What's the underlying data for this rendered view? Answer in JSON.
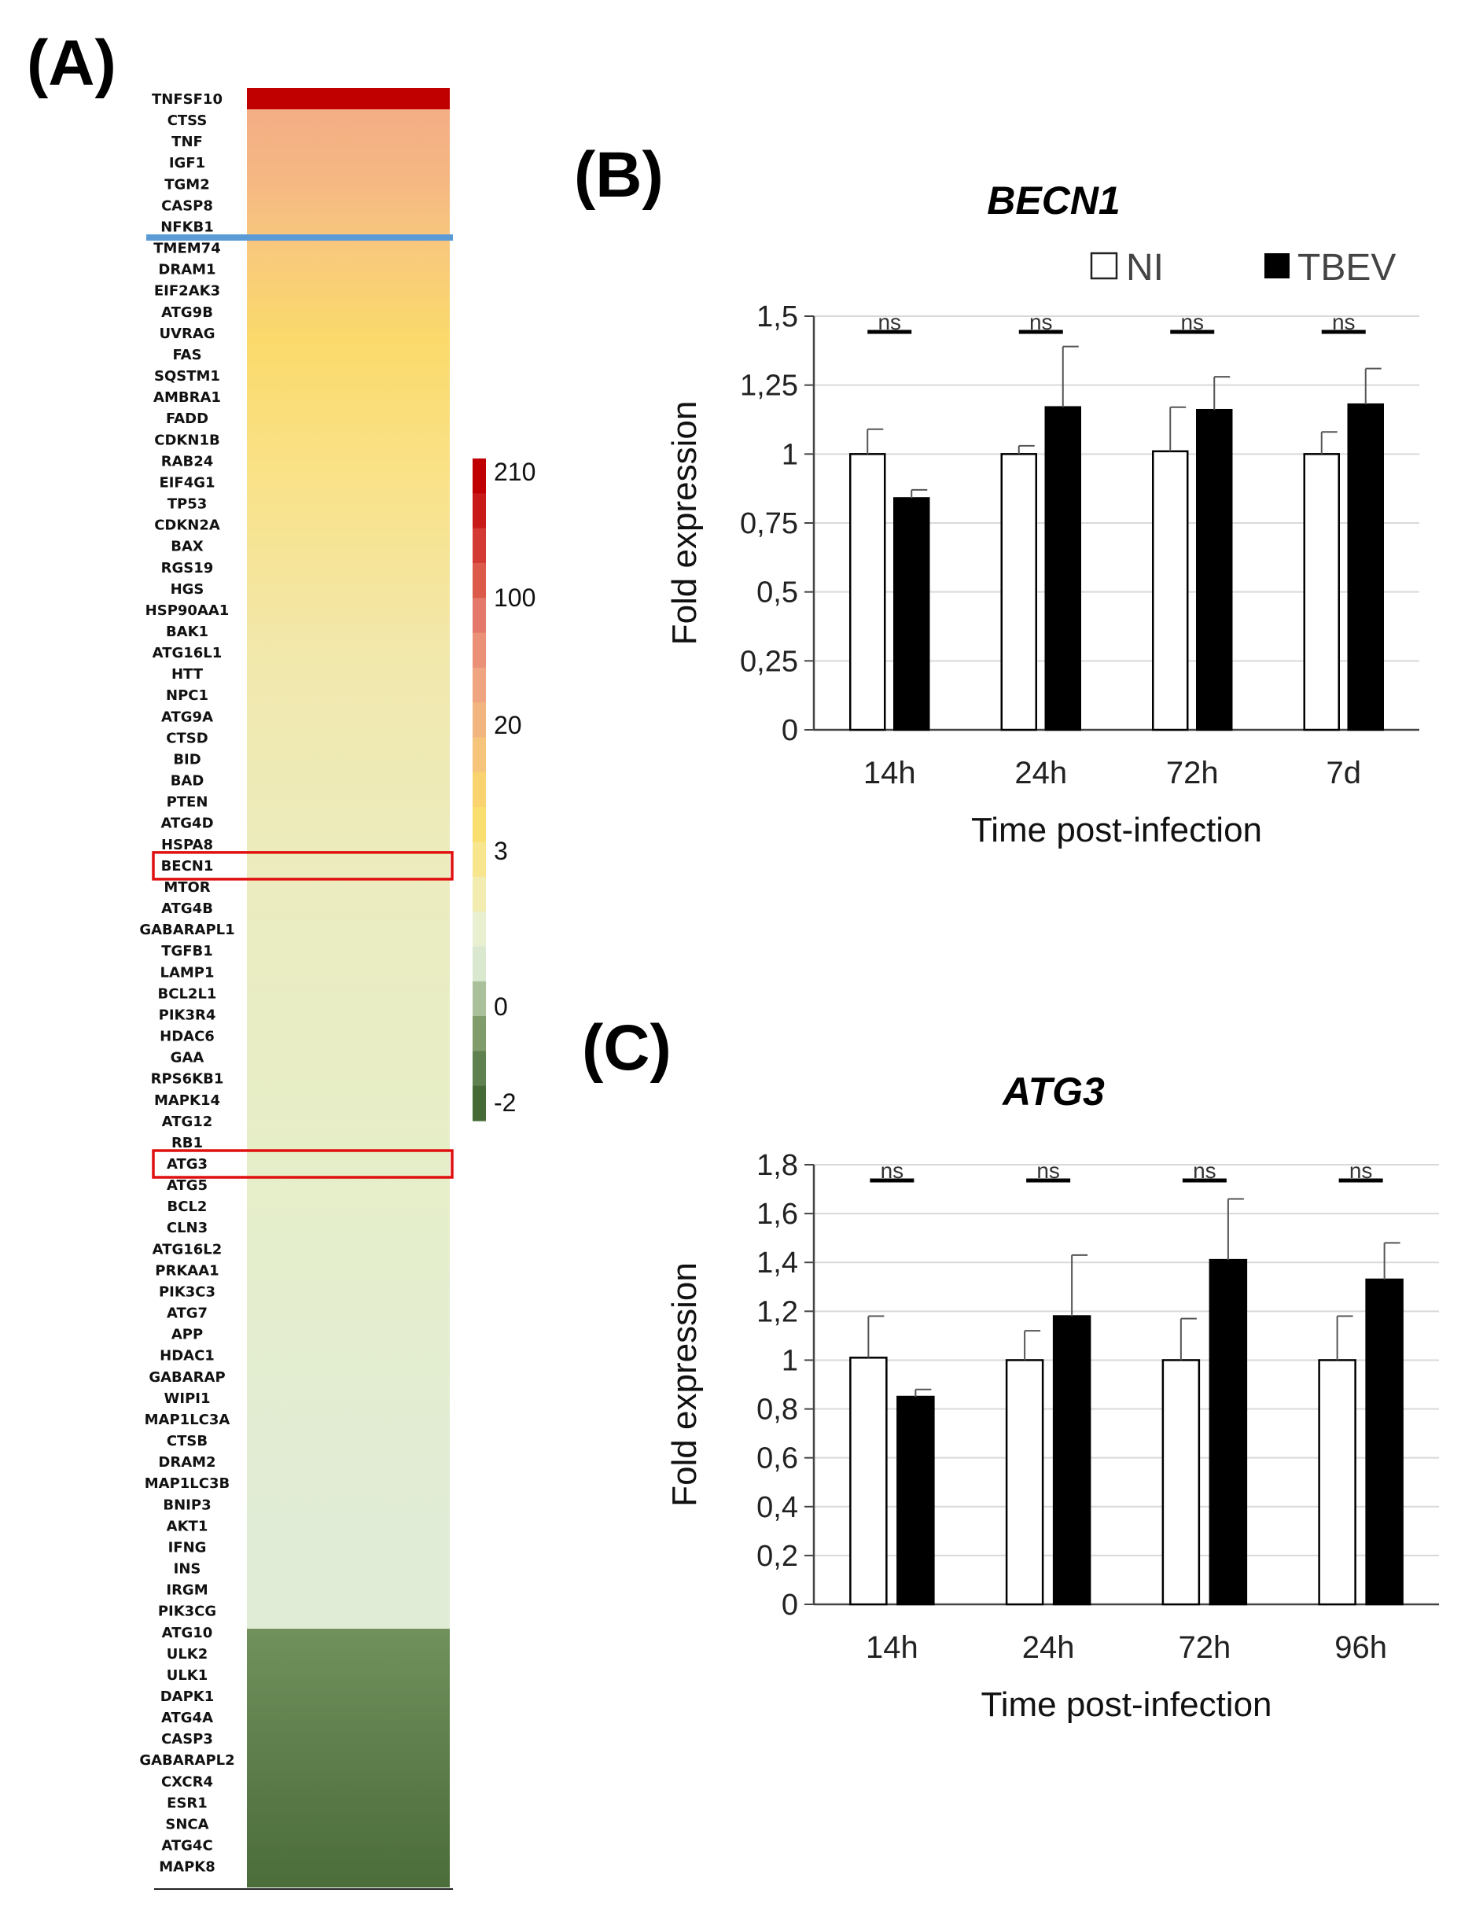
{
  "heatmap": {
    "panel_label": "(A)",
    "genes": [
      "TNFSF10",
      "CTSS",
      "TNF",
      "IGF1",
      "TGM2",
      "CASP8",
      "NFKB1",
      "TMEM74",
      "DRAM1",
      "EIF2AK3",
      "ATG9B",
      "UVRAG",
      "FAS",
      "SQSTM1",
      "AMBRA1",
      "FADD",
      "CDKN1B",
      "RAB24",
      "EIF4G1",
      "TP53",
      "CDKN2A",
      "BAX",
      "RGS19",
      "HGS",
      "HSP90AA1",
      "BAK1",
      "ATG16L1",
      "HTT",
      "NPC1",
      "ATG9A",
      "CTSD",
      "BID",
      "BAD",
      "PTEN",
      "ATG4D",
      "HSPA8",
      "BECN1",
      "MTOR",
      "ATG4B",
      "GABARAPL1",
      "TGFB1",
      "LAMP1",
      "BCL2L1",
      "PIK3R4",
      "HDAC6",
      "GAA",
      "RPS6KB1",
      "MAPK14",
      "ATG12",
      "RB1",
      "ATG3",
      "ATG5",
      "BCL2",
      "CLN3",
      "ATG16L2",
      "PRKAA1",
      "PIK3C3",
      "ATG7",
      "APP",
      "HDAC1",
      "GABARAP",
      "WIPI1",
      "MAP1LC3A",
      "CTSB",
      "DRAM2",
      "MAP1LC3B",
      "BNIP3",
      "AKT1",
      "IFNG",
      "INS",
      "IRGM",
      "PIK3CG",
      "ATG10",
      "ULK2",
      "ULK1",
      "DAPK1",
      "ATG4A",
      "CASP3",
      "GABARAPL2",
      "CXCR4",
      "ESR1",
      "SNCA",
      "ATG4C",
      "MAPK8"
    ],
    "highlighted_boxes": [
      "BECN1",
      "ATG3"
    ],
    "divider_after": "NFKB1",
    "colorbar": {
      "labels": [
        "210",
        "100",
        "20",
        "3",
        "0",
        "-2"
      ],
      "colors": [
        "#c00000",
        "#c91a1a",
        "#d33a33",
        "#dc5a4a",
        "#e4786a",
        "#ea9177",
        "#efa57f",
        "#f3b57f",
        "#f6c47a",
        "#f9d36f",
        "#fadf70",
        "#f7e68d",
        "#f2ecb0",
        "#e9f0d2",
        "#dbe8d0",
        "#a9c09a",
        "#7f9c6a",
        "#5f814f",
        "#456a36"
      ]
    },
    "colors": {
      "dark_red": "#c00000",
      "peach": "#f4ae84",
      "light_orange": "#f7c37c",
      "yellow": "#fbdb6c",
      "pale_yellow": "#efeab5",
      "pale_green": "#e1ecd6",
      "green": "#6e8c5a",
      "dark_green": "#4b6d39",
      "divider_blue": "#5b9bd5",
      "highlight_red": "#e01010"
    }
  },
  "legend": {
    "items": [
      "NI",
      "TBEV"
    ]
  },
  "chart_data": [
    {
      "panel_label": "(B)",
      "type": "bar",
      "title": "BECN1",
      "categories": [
        "14h",
        "24h",
        "72h",
        "7d"
      ],
      "series": [
        {
          "name": "NI",
          "values": [
            1.0,
            1.0,
            1.01,
            1.0
          ],
          "errors": [
            0.09,
            0.03,
            0.16,
            0.08
          ]
        },
        {
          "name": "TBEV",
          "values": [
            0.84,
            1.17,
            1.16,
            1.18
          ],
          "errors": [
            0.03,
            0.22,
            0.12,
            0.13
          ]
        }
      ],
      "significance": [
        "ns",
        "ns",
        "ns",
        "ns"
      ],
      "xlabel": "Time post-infection",
      "ylabel": "Fold expression",
      "ylim": [
        0,
        1.5
      ],
      "yticks": [
        0,
        0.25,
        0.5,
        0.75,
        1,
        1.25,
        1.5
      ],
      "ytick_labels": [
        "0",
        "0,25",
        "0,5",
        "0,75",
        "1",
        "1,25",
        "1,5"
      ],
      "grid": true
    },
    {
      "panel_label": "(C)",
      "type": "bar",
      "title": "ATG3",
      "categories": [
        "14h",
        "24h",
        "72h",
        "96h"
      ],
      "series": [
        {
          "name": "NI",
          "values": [
            1.01,
            1.0,
            1.0,
            1.0
          ],
          "errors": [
            0.17,
            0.12,
            0.17,
            0.18
          ]
        },
        {
          "name": "TBEV",
          "values": [
            0.85,
            1.18,
            1.41,
            1.33
          ],
          "errors": [
            0.03,
            0.25,
            0.25,
            0.15
          ]
        }
      ],
      "significance": [
        "ns",
        "ns",
        "ns",
        "ns"
      ],
      "xlabel": "Time post-infection",
      "ylabel": "Fold expression",
      "ylim": [
        0,
        1.8
      ],
      "yticks": [
        0,
        0.2,
        0.4,
        0.6,
        0.8,
        1,
        1.2,
        1.4,
        1.6,
        1.8
      ],
      "ytick_labels": [
        "0",
        "0,2",
        "0,4",
        "0,6",
        "0,8",
        "1",
        "1,2",
        "1,4",
        "1,6",
        "1,8"
      ],
      "grid": true
    }
  ]
}
